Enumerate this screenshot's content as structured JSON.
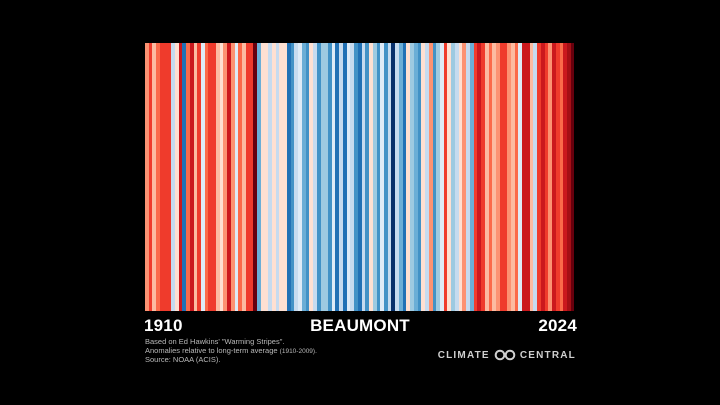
{
  "chart_data": {
    "type": "heatmap",
    "title": "BEAUMONT",
    "start_year": "1910",
    "end_year": "2024",
    "years": [
      1910,
      2024
    ],
    "stripes": [
      {
        "year": 1910,
        "anomaly": 0.6
      },
      {
        "year": 1911,
        "anomaly": 1.1
      },
      {
        "year": 1912,
        "anomaly": 0.4
      },
      {
        "year": 1913,
        "anomaly": 0.7
      },
      {
        "year": 1914,
        "anomaly": 1.0
      },
      {
        "year": 1915,
        "anomaly": 0.9
      },
      {
        "year": 1916,
        "anomaly": 1.1
      },
      {
        "year": 1917,
        "anomaly": -0.4
      },
      {
        "year": 1918,
        "anomaly": 0.2
      },
      {
        "year": 1919,
        "anomaly": 1.2
      },
      {
        "year": 1920,
        "anomaly": -1.2
      },
      {
        "year": 1921,
        "anomaly": 0.8
      },
      {
        "year": 1922,
        "anomaly": 1.2
      },
      {
        "year": 1923,
        "anomaly": 0.3
      },
      {
        "year": 1924,
        "anomaly": 1.0
      },
      {
        "year": 1925,
        "anomaly": -0.1
      },
      {
        "year": 1926,
        "anomaly": 0.7
      },
      {
        "year": 1927,
        "anomaly": 1.1
      },
      {
        "year": 1928,
        "anomaly": 0.9
      },
      {
        "year": 1929,
        "anomaly": 0.3
      },
      {
        "year": 1930,
        "anomaly": 0.2
      },
      {
        "year": 1931,
        "anomaly": 0.6
      },
      {
        "year": 1932,
        "anomaly": 1.2
      },
      {
        "year": 1933,
        "anomaly": 0.5
      },
      {
        "year": 1934,
        "anomaly": -0.2
      },
      {
        "year": 1935,
        "anomaly": 0.8
      },
      {
        "year": 1936,
        "anomaly": 0.4
      },
      {
        "year": 1937,
        "anomaly": 1.0
      },
      {
        "year": 1938,
        "anomaly": 1.1
      },
      {
        "year": 1939,
        "anomaly": 1.6
      },
      {
        "year": 1940,
        "anomaly": -0.8
      },
      {
        "year": 1941,
        "anomaly": 0.1
      },
      {
        "year": 1942,
        "anomaly": 0.0
      },
      {
        "year": 1943,
        "anomaly": -0.3
      },
      {
        "year": 1944,
        "anomaly": 0.1
      },
      {
        "year": 1945,
        "anomaly": -0.4
      },
      {
        "year": 1946,
        "anomaly": 0.2
      },
      {
        "year": 1947,
        "anomaly": 0.1
      },
      {
        "year": 1948,
        "anomaly": -1.2
      },
      {
        "year": 1949,
        "anomaly": -1.0
      },
      {
        "year": 1950,
        "anomaly": -0.4
      },
      {
        "year": 1951,
        "anomaly": -0.1
      },
      {
        "year": 1952,
        "anomaly": -0.7
      },
      {
        "year": 1953,
        "anomaly": -1.1
      },
      {
        "year": 1954,
        "anomaly": 0.2
      },
      {
        "year": 1955,
        "anomaly": -0.3
      },
      {
        "year": 1956,
        "anomaly": -0.9
      },
      {
        "year": 1957,
        "anomaly": -0.6
      },
      {
        "year": 1958,
        "anomaly": -0.5
      },
      {
        "year": 1959,
        "anomaly": -1.1
      },
      {
        "year": 1960,
        "anomaly": -0.2
      },
      {
        "year": 1961,
        "anomaly": -1.2
      },
      {
        "year": 1962,
        "anomaly": -0.4
      },
      {
        "year": 1963,
        "anomaly": -1.2
      },
      {
        "year": 1964,
        "anomaly": -0.2
      },
      {
        "year": 1965,
        "anomaly": -0.4
      },
      {
        "year": 1966,
        "anomaly": -0.9
      },
      {
        "year": 1967,
        "anomaly": -1.2
      },
      {
        "year": 1968,
        "anomaly": -0.3
      },
      {
        "year": 1969,
        "anomaly": -1.1
      },
      {
        "year": 1970,
        "anomaly": 0.2
      },
      {
        "year": 1971,
        "anomaly": -0.6
      },
      {
        "year": 1972,
        "anomaly": -1.1
      },
      {
        "year": 1973,
        "anomaly": -0.2
      },
      {
        "year": 1974,
        "anomaly": -0.9
      },
      {
        "year": 1975,
        "anomaly": -0.4
      },
      {
        "year": 1976,
        "anomaly": -1.6
      },
      {
        "year": 1977,
        "anomaly": -0.3
      },
      {
        "year": 1978,
        "anomaly": -0.8
      },
      {
        "year": 1979,
        "anomaly": -1.2
      },
      {
        "year": 1980,
        "anomaly": 0.1
      },
      {
        "year": 1981,
        "anomaly": -0.5
      },
      {
        "year": 1982,
        "anomaly": -0.7
      },
      {
        "year": 1983,
        "anomaly": -1.0
      },
      {
        "year": 1984,
        "anomaly": 0.0
      },
      {
        "year": 1985,
        "anomaly": -0.4
      },
      {
        "year": 1986,
        "anomaly": 0.6
      },
      {
        "year": 1987,
        "anomaly": -0.9
      },
      {
        "year": 1988,
        "anomaly": -0.5
      },
      {
        "year": 1989,
        "anomaly": -0.2
      },
      {
        "year": 1990,
        "anomaly": 0.9
      },
      {
        "year": 1991,
        "anomaly": 0.2
      },
      {
        "year": 1992,
        "anomaly": -0.6
      },
      {
        "year": 1993,
        "anomaly": -0.3
      },
      {
        "year": 1994,
        "anomaly": 0.1
      },
      {
        "year": 1995,
        "anomaly": 0.5
      },
      {
        "year": 1996,
        "anomaly": -0.4
      },
      {
        "year": 1997,
        "anomaly": -0.8
      },
      {
        "year": 1998,
        "anomaly": 1.0
      },
      {
        "year": 1999,
        "anomaly": 1.2
      },
      {
        "year": 2000,
        "anomaly": 0.9
      },
      {
        "year": 2001,
        "anomaly": 0.3
      },
      {
        "year": 2002,
        "anomaly": 0.7
      },
      {
        "year": 2003,
        "anomaly": 0.4
      },
      {
        "year": 2004,
        "anomaly": 0.6
      },
      {
        "year": 2005,
        "anomaly": 0.9
      },
      {
        "year": 2006,
        "anomaly": 1.1
      },
      {
        "year": 2007,
        "anomaly": 0.5
      },
      {
        "year": 2008,
        "anomaly": 0.3
      },
      {
        "year": 2009,
        "anomaly": 0.8
      },
      {
        "year": 2010,
        "anomaly": -0.2
      },
      {
        "year": 2011,
        "anomaly": 1.3
      },
      {
        "year": 2012,
        "anomaly": 1.2
      },
      {
        "year": 2013,
        "anomaly": 0.4
      },
      {
        "year": 2014,
        "anomaly": -0.3
      },
      {
        "year": 2015,
        "anomaly": 0.9
      },
      {
        "year": 2016,
        "anomaly": 1.2
      },
      {
        "year": 2017,
        "anomaly": 1.1
      },
      {
        "year": 2018,
        "anomaly": 0.6
      },
      {
        "year": 2019,
        "anomaly": 1.2
      },
      {
        "year": 2020,
        "anomaly": 1.1
      },
      {
        "year": 2021,
        "anomaly": 0.7
      },
      {
        "year": 2022,
        "anomaly": 1.3
      },
      {
        "year": 2023,
        "anomaly": 1.4
      },
      {
        "year": 2024,
        "anomaly": 1.8
      }
    ],
    "color_scale": {
      "cold": [
        "#08306b",
        "#08519c",
        "#2171b5",
        "#4292c6",
        "#6baed6",
        "#9ecae1",
        "#c6dbef",
        "#deebf7"
      ],
      "warm": [
        "#fee0d2",
        "#fcbba1",
        "#fc9272",
        "#fb6a4a",
        "#ef3b2c",
        "#cb181d",
        "#a50f15",
        "#67000d"
      ]
    }
  },
  "notes": {
    "line1": "Based on Ed Hawkins' \"Warming Stripes\".",
    "line2": "Anomalies relative to long-term average",
    "line2_period": "(1910-2009).",
    "line3": "Source: NOAA (ACIS)."
  },
  "brand": {
    "name_left": "CLIMATE",
    "name_right": "CENTRAL",
    "icon": "infinity-link-icon",
    "color": "#cfcfcf"
  }
}
